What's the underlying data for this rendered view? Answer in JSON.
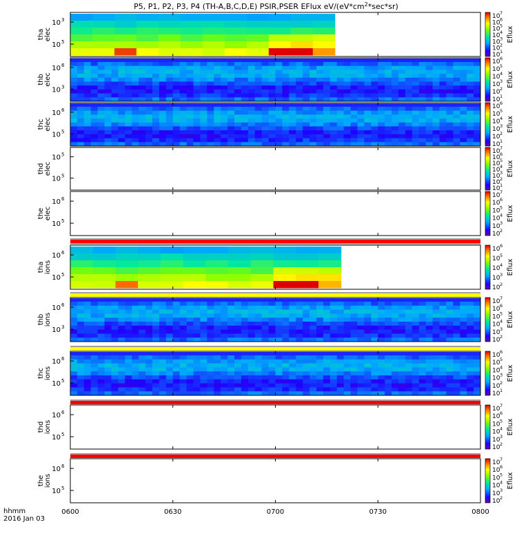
{
  "chart_data": {
    "type": "heatmap",
    "title_main": "P5, P1, P2, P3, P4 (TH-A,B,C,D,E) PSIR,PSER EFlux eV/(eV*cm",
    "title_sup": "2",
    "title_end": "*sec*sr)",
    "xlabel_line1": "hhmm",
    "xlabel_line2": "2016 Jan 03",
    "x_ticks": [
      "0600",
      "0630",
      "0700",
      "0730",
      "0800"
    ],
    "colorbar_label": "Eflux",
    "panels": [
      {
        "probe": "tha",
        "species": "elec",
        "yticks": [
          "10",
          "10"
        ],
        "yexp": [
          "3",
          "5"
        ],
        "cticks": [
          "10",
          "10",
          "10",
          "10",
          "10",
          "10",
          "10"
        ],
        "cexp": [
          "7",
          "6",
          "5",
          "4",
          "3",
          "2",
          "1"
        ],
        "status_bar": "none",
        "data_end_fraction": 0.645,
        "pattern": "blocky"
      },
      {
        "probe": "thb",
        "species": "elec",
        "yticks": [
          "10",
          "10"
        ],
        "yexp": [
          "6",
          "3"
        ],
        "cticks": [
          "10",
          "10",
          "10",
          "10",
          "10",
          "10"
        ],
        "cexp": [
          "6",
          "5",
          "4",
          "3",
          "2",
          "1"
        ],
        "status_bar": "none",
        "data_end_fraction": 1.0,
        "pattern": "noise"
      },
      {
        "probe": "thc",
        "species": "elec",
        "yticks": [
          "10",
          "10"
        ],
        "yexp": [
          "6",
          "5"
        ],
        "cticks": [
          "10",
          "10",
          "10",
          "10",
          "10",
          "10"
        ],
        "cexp": [
          "6",
          "5",
          "4",
          "3",
          "2",
          "1"
        ],
        "status_bar": "none",
        "data_end_fraction": 1.0,
        "pattern": "noise"
      },
      {
        "probe": "thd",
        "species": "elec",
        "yticks": [
          "10",
          "10"
        ],
        "yexp": [
          "5",
          "5"
        ],
        "cticks": [
          "10",
          "10",
          "10",
          "10",
          "10",
          "10",
          "10"
        ],
        "cexp": [
          "7",
          "6",
          "5",
          "4",
          "3",
          "2",
          "1"
        ],
        "status_bar": "none",
        "data_end_fraction": 0,
        "pattern": "empty"
      },
      {
        "probe": "the",
        "species": "elec",
        "yticks": [
          "10",
          "10"
        ],
        "yexp": [
          "6",
          "5"
        ],
        "cticks": [
          "10",
          "10",
          "10",
          "10",
          "10",
          "10"
        ],
        "cexp": [
          "7",
          "6",
          "5",
          "4",
          "3",
          "2"
        ],
        "status_bar": "red",
        "data_end_fraction": 0,
        "pattern": "empty"
      },
      {
        "probe": "tha",
        "species": "ions",
        "yticks": [
          "10",
          "10"
        ],
        "yexp": [
          "6",
          "5"
        ],
        "cticks": [
          "10",
          "10",
          "10",
          "10",
          "10"
        ],
        "cexp": [
          "6",
          "5",
          "4",
          "3",
          "2"
        ],
        "status_bar": "yellow",
        "data_end_fraction": 0.66,
        "pattern": "blocky"
      },
      {
        "probe": "thb",
        "species": "ions",
        "yticks": [
          "10",
          "10"
        ],
        "yexp": [
          "6",
          "3"
        ],
        "cticks": [
          "10",
          "10",
          "10",
          "10",
          "10",
          "10"
        ],
        "cexp": [
          "7",
          "6",
          "5",
          "4",
          "3",
          "2"
        ],
        "status_bar": "yellow",
        "data_end_fraction": 1.0,
        "pattern": "noise"
      },
      {
        "probe": "thc",
        "species": "ions",
        "yticks": [
          "10",
          "10"
        ],
        "yexp": [
          "6",
          "5"
        ],
        "cticks": [
          "10",
          "10",
          "10",
          "10",
          "10",
          "10"
        ],
        "cexp": [
          "6",
          "5",
          "4",
          "3",
          "2",
          "1"
        ],
        "status_bar": "red",
        "data_end_fraction": 1.0,
        "pattern": "noise"
      },
      {
        "probe": "thd",
        "species": "ions",
        "yticks": [
          "10",
          "10"
        ],
        "yexp": [
          "6",
          "5"
        ],
        "cticks": [
          "10",
          "10",
          "10",
          "10",
          "10",
          "10"
        ],
        "cexp": [
          "7",
          "6",
          "5",
          "4",
          "3",
          "2"
        ],
        "status_bar": "red",
        "data_end_fraction": 0,
        "pattern": "empty"
      },
      {
        "probe": "the",
        "species": "ions",
        "yticks": [
          "10",
          "10"
        ],
        "yexp": [
          "6",
          "5"
        ],
        "cticks": [
          "10",
          "10",
          "10",
          "10",
          "10",
          "10"
        ],
        "cexp": [
          "7",
          "6",
          "5",
          "4",
          "3",
          "2"
        ],
        "status_bar": "none",
        "data_end_fraction": 0,
        "pattern": "empty"
      }
    ]
  }
}
